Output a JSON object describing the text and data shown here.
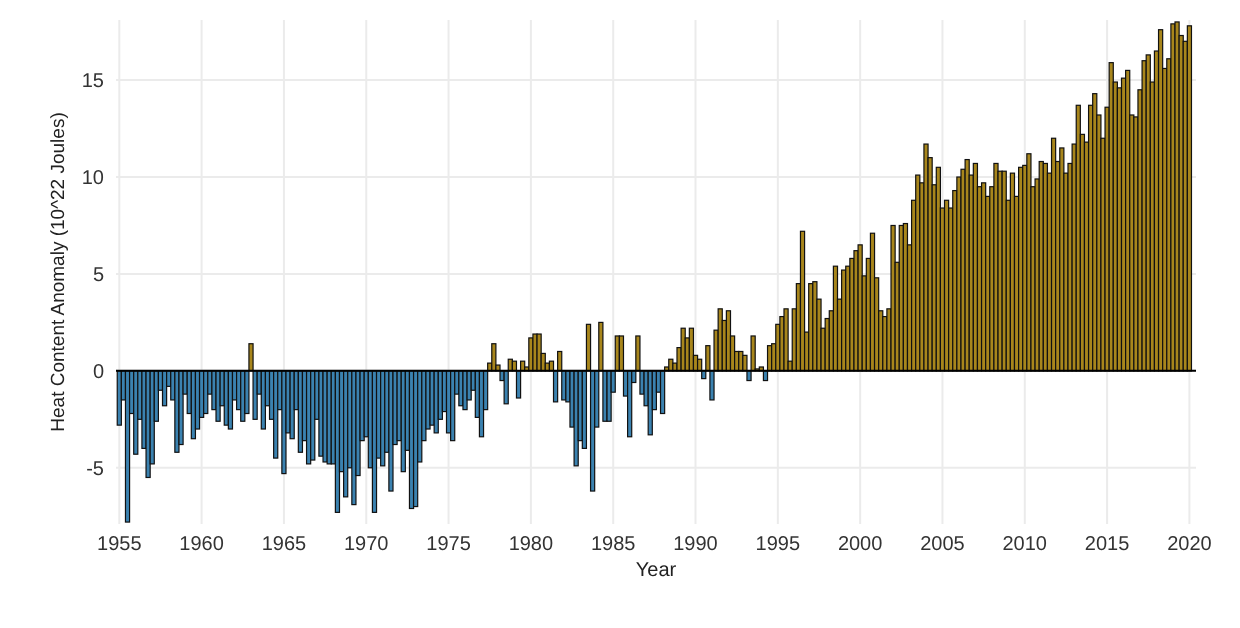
{
  "chart_data": {
    "type": "bar",
    "xlabel": "Year",
    "ylabel": "Heat Content Anomaly (10^22 Joules)",
    "xlim": [
      1954.8,
      2020.4
    ],
    "ylim": [
      -7.9,
      18.1
    ],
    "xticks": [
      1955,
      1960,
      1965,
      1970,
      1975,
      1980,
      1985,
      1990,
      1995,
      2000,
      2005,
      2010,
      2015,
      2020
    ],
    "yticks": [
      -5,
      0,
      5,
      10,
      15
    ],
    "grid": true,
    "ref_lines": [
      {
        "axis": "y",
        "value": 0,
        "color": "#000000"
      }
    ],
    "x": [
      1955,
      1955.25,
      1955.5,
      1955.75,
      1956,
      1956.25,
      1956.5,
      1956.75,
      1957,
      1957.25,
      1957.5,
      1957.75,
      1958,
      1958.25,
      1958.5,
      1958.75,
      1959,
      1959.25,
      1959.5,
      1959.75,
      1960,
      1960.25,
      1960.5,
      1960.75,
      1961,
      1961.25,
      1961.5,
      1961.75,
      1962,
      1962.25,
      1962.5,
      1962.75,
      1963,
      1963.25,
      1963.5,
      1963.75,
      1964,
      1964.25,
      1964.5,
      1964.75,
      1965,
      1965.25,
      1965.5,
      1965.75,
      1966,
      1966.25,
      1966.5,
      1966.75,
      1967,
      1967.25,
      1967.5,
      1967.75,
      1968,
      1968.25,
      1968.5,
      1968.75,
      1969,
      1969.25,
      1969.5,
      1969.75,
      1970,
      1970.25,
      1970.5,
      1970.75,
      1971,
      1971.25,
      1971.5,
      1971.75,
      1972,
      1972.25,
      1972.5,
      1972.75,
      1973,
      1973.25,
      1973.5,
      1973.75,
      1974,
      1974.25,
      1974.5,
      1974.75,
      1975,
      1975.25,
      1975.5,
      1975.75,
      1976,
      1976.25,
      1976.5,
      1976.75,
      1977,
      1977.25,
      1977.5,
      1977.75,
      1978,
      1978.25,
      1978.5,
      1978.75,
      1979,
      1979.25,
      1979.5,
      1979.75,
      1980,
      1980.25,
      1980.5,
      1980.75,
      1981,
      1981.25,
      1981.5,
      1981.75,
      1982,
      1982.25,
      1982.5,
      1982.75,
      1983,
      1983.25,
      1983.5,
      1983.75,
      1984,
      1984.25,
      1984.5,
      1984.75,
      1985,
      1985.25,
      1985.5,
      1985.75,
      1986,
      1986.25,
      1986.5,
      1986.75,
      1987,
      1987.25,
      1987.5,
      1987.75,
      1988,
      1988.25,
      1988.5,
      1988.75,
      1989,
      1989.25,
      1989.5,
      1989.75,
      1990,
      1990.25,
      1990.5,
      1990.75,
      1991,
      1991.25,
      1991.5,
      1991.75,
      1992,
      1992.25,
      1992.5,
      1992.75,
      1993,
      1993.25,
      1993.5,
      1993.75,
      1994,
      1994.25,
      1994.5,
      1994.75,
      1995,
      1995.25,
      1995.5,
      1995.75,
      1996,
      1996.25,
      1996.5,
      1996.75,
      1997,
      1997.25,
      1997.5,
      1997.75,
      1998,
      1998.25,
      1998.5,
      1998.75,
      1999,
      1999.25,
      1999.5,
      1999.75,
      2000,
      2000.25,
      2000.5,
      2000.75,
      2001,
      2001.25,
      2001.5,
      2001.75,
      2002,
      2002.25,
      2002.5,
      2002.75,
      2003,
      2003.25,
      2003.5,
      2003.75,
      2004,
      2004.25,
      2004.5,
      2004.75,
      2005,
      2005.25,
      2005.5,
      2005.75,
      2006,
      2006.25,
      2006.5,
      2006.75,
      2007,
      2007.25,
      2007.5,
      2007.75,
      2008,
      2008.25,
      2008.5,
      2008.75,
      2009,
      2009.25,
      2009.5,
      2009.75,
      2010,
      2010.25,
      2010.5,
      2010.75,
      2011,
      2011.25,
      2011.5,
      2011.75,
      2012,
      2012.25,
      2012.5,
      2012.75,
      2013,
      2013.25,
      2013.5,
      2013.75,
      2014,
      2014.25,
      2014.5,
      2014.75,
      2015,
      2015.25,
      2015.5,
      2015.75,
      2016,
      2016.25,
      2016.5,
      2016.75,
      2017,
      2017.25,
      2017.5,
      2017.75,
      2018,
      2018.25,
      2018.5,
      2018.75,
      2019,
      2019.25,
      2019.5,
      2019.75,
      2020
    ],
    "values": [
      -2.8,
      -1.5,
      -7.8,
      -2.2,
      -4.3,
      -2.5,
      -4.0,
      -5.5,
      -4.8,
      -2.6,
      -1.0,
      -1.8,
      -0.8,
      -1.5,
      -4.2,
      -3.8,
      -1.2,
      -2.2,
      -3.5,
      -3.0,
      -2.4,
      -2.2,
      -1.2,
      -2.0,
      -2.6,
      -1.8,
      -2.8,
      -3.0,
      -1.5,
      -2.0,
      -2.6,
      -2.2,
      1.4,
      -2.5,
      -1.2,
      -3.0,
      -1.8,
      -2.5,
      -4.5,
      -2.0,
      -5.3,
      -3.2,
      -3.5,
      -2.0,
      -4.2,
      -3.6,
      -4.8,
      -4.6,
      -2.5,
      -4.4,
      -4.7,
      -4.8,
      -4.8,
      -7.3,
      -5.2,
      -6.5,
      -5.0,
      -6.9,
      -5.4,
      -3.6,
      -3.4,
      -5.0,
      -7.3,
      -4.5,
      -4.9,
      -4.2,
      -6.2,
      -3.8,
      -3.6,
      -5.2,
      -4.1,
      -7.1,
      -7.0,
      -4.7,
      -3.6,
      -3.0,
      -2.8,
      -3.2,
      -2.5,
      -2.1,
      -3.2,
      -3.6,
      -1.2,
      -1.8,
      -2.0,
      -1.5,
      -1.0,
      -2.4,
      -3.4,
      -2.0,
      0.4,
      1.4,
      0.3,
      -0.5,
      -1.7,
      0.6,
      0.5,
      -1.4,
      0.5,
      0.2,
      1.7,
      1.9,
      1.9,
      0.9,
      0.4,
      0.5,
      -1.6,
      1.0,
      -1.5,
      -1.6,
      -2.9,
      -4.9,
      -3.6,
      -4.0,
      2.4,
      -6.2,
      -2.9,
      2.5,
      -2.6,
      -2.6,
      -1.1,
      1.8,
      1.8,
      -1.3,
      -3.4,
      -0.6,
      1.8,
      -1.2,
      -1.8,
      -3.3,
      -2.0,
      -1.1,
      -2.2,
      0.2,
      0.6,
      0.4,
      1.2,
      2.2,
      1.7,
      2.2,
      0.8,
      0.6,
      -0.4,
      1.3,
      -1.5,
      2.1,
      3.2,
      2.6,
      3.1,
      1.8,
      1.0,
      1.0,
      0.8,
      -0.5,
      1.8,
      0.1,
      0.2,
      -0.5,
      1.3,
      1.4,
      2.4,
      2.8,
      3.2,
      0.5,
      3.2,
      4.5,
      7.2,
      2.0,
      4.5,
      4.6,
      3.7,
      2.2,
      2.7,
      3.1,
      5.4,
      3.7,
      5.2,
      5.4,
      5.8,
      6.2,
      6.5,
      4.9,
      5.8,
      7.1,
      4.8,
      3.1,
      2.8,
      3.2,
      7.5,
      5.6,
      7.5,
      7.6,
      6.5,
      8.8,
      10.1,
      9.7,
      11.7,
      11.0,
      9.6,
      10.5,
      8.4,
      8.8,
      8.4,
      9.3,
      10.0,
      10.4,
      10.9,
      10.1,
      10.7,
      9.5,
      9.7,
      9.0,
      9.5,
      10.7,
      10.3,
      10.3,
      8.8,
      10.2,
      9.0,
      10.5,
      10.6,
      11.2,
      9.5,
      9.9,
      10.8,
      10.7,
      10.2,
      12.0,
      10.8,
      11.5,
      10.2,
      10.7,
      11.7,
      13.7,
      12.2,
      11.8,
      13.7,
      14.3,
      13.2,
      12.0,
      13.6,
      15.9,
      14.9,
      14.6,
      15.1,
      15.5,
      13.2,
      13.1,
      14.5,
      16.0,
      16.3,
      14.9,
      16.5,
      17.6,
      15.6,
      16.1,
      17.9,
      18.0,
      17.3,
      17.0,
      17.8
    ],
    "colors": [
      "#3b82b0",
      "#3b82b0",
      "#3b82b0",
      "#3b82b0",
      "#3b82b0",
      "#3b82b0",
      "#3b82b0",
      "#3b82b0",
      "#3b82b0",
      "#3b82b0",
      "#3b82b0",
      "#3b82b0",
      "#3b82b0",
      "#3b82b0",
      "#3b82b0",
      "#3b82b0",
      "#3b82b0",
      "#3b82b0",
      "#3b82b0",
      "#3b82b0",
      "#3b82b0",
      "#3b82b0",
      "#3b82b0",
      "#3b82b0",
      "#3b82b0",
      "#3b82b0",
      "#3b82b0",
      "#3b82b0",
      "#3b82b0",
      "#3b82b0",
      "#3b82b0",
      "#3b82b0",
      "#a8861c",
      "#3b82b0",
      "#3b82b0",
      "#3b82b0",
      "#3b82b0",
      "#3b82b0",
      "#3b82b0",
      "#3b82b0",
      "#3b82b0",
      "#3b82b0",
      "#3b82b0",
      "#3b82b0",
      "#3b82b0",
      "#3b82b0",
      "#3b82b0",
      "#3b82b0",
      "#3b82b0",
      "#3b82b0",
      "#3b82b0",
      "#3b82b0",
      "#3b82b0",
      "#3b82b0",
      "#3b82b0",
      "#3b82b0",
      "#3b82b0",
      "#3b82b0",
      "#3b82b0",
      "#3b82b0",
      "#3b82b0",
      "#3b82b0",
      "#3b82b0",
      "#3b82b0",
      "#3b82b0",
      "#3b82b0",
      "#3b82b0",
      "#3b82b0",
      "#3b82b0",
      "#3b82b0",
      "#3b82b0",
      "#3b82b0",
      "#3b82b0",
      "#3b82b0",
      "#3b82b0",
      "#3b82b0",
      "#3b82b0",
      "#3b82b0",
      "#3b82b0",
      "#3b82b0",
      "#3b82b0",
      "#3b82b0",
      "#3b82b0",
      "#3b82b0",
      "#3b82b0",
      "#3b82b0",
      "#3b82b0",
      "#3b82b0",
      "#3b82b0",
      "#3b82b0",
      "#a8861c",
      "#a8861c",
      "#a8861c",
      "#3b82b0",
      "#3b82b0",
      "#a8861c",
      "#a8861c",
      "#3b82b0",
      "#a8861c",
      "#a8861c",
      "#a8861c",
      "#a8861c",
      "#a8861c",
      "#a8861c",
      "#a8861c",
      "#a8861c",
      "#3b82b0",
      "#a8861c",
      "#3b82b0",
      "#3b82b0",
      "#3b82b0",
      "#3b82b0",
      "#3b82b0",
      "#3b82b0",
      "#a8861c",
      "#3b82b0",
      "#3b82b0",
      "#a8861c",
      "#3b82b0",
      "#3b82b0",
      "#3b82b0",
      "#a8861c",
      "#a8861c",
      "#3b82b0",
      "#3b82b0",
      "#3b82b0",
      "#a8861c",
      "#3b82b0",
      "#3b82b0",
      "#3b82b0",
      "#3b82b0",
      "#3b82b0",
      "#3b82b0",
      "#a8861c",
      "#a8861c",
      "#a8861c",
      "#a8861c",
      "#a8861c",
      "#a8861c",
      "#a8861c",
      "#a8861c",
      "#a8861c",
      "#3b82b0",
      "#a8861c",
      "#3b82b0",
      "#a8861c",
      "#a8861c",
      "#a8861c",
      "#a8861c",
      "#a8861c",
      "#a8861c",
      "#a8861c",
      "#a8861c",
      "#3b82b0",
      "#a8861c",
      "#a8861c",
      "#a8861c",
      "#3b82b0",
      "#a8861c",
      "#a8861c",
      "#a8861c",
      "#a8861c",
      "#a8861c",
      "#a8861c",
      "#a8861c",
      "#a8861c",
      "#a8861c",
      "#a8861c",
      "#a8861c",
      "#a8861c",
      "#a8861c",
      "#a8861c",
      "#a8861c",
      "#a8861c",
      "#a8861c",
      "#a8861c",
      "#a8861c",
      "#a8861c",
      "#a8861c",
      "#a8861c",
      "#a8861c",
      "#a8861c",
      "#a8861c",
      "#a8861c",
      "#a8861c",
      "#a8861c",
      "#a8861c",
      "#a8861c",
      "#a8861c",
      "#a8861c",
      "#a8861c",
      "#a8861c",
      "#a8861c",
      "#a8861c",
      "#a8861c",
      "#a8861c",
      "#a8861c",
      "#a8861c",
      "#a8861c",
      "#a8861c",
      "#a8861c",
      "#a8861c",
      "#a8861c",
      "#a8861c",
      "#a8861c",
      "#a8861c",
      "#a8861c",
      "#a8861c",
      "#a8861c",
      "#a8861c",
      "#a8861c",
      "#a8861c",
      "#a8861c",
      "#a8861c",
      "#a8861c",
      "#a8861c",
      "#a8861c",
      "#a8861c",
      "#a8861c",
      "#a8861c",
      "#a8861c",
      "#a8861c",
      "#a8861c",
      "#a8861c",
      "#a8861c",
      "#a8861c",
      "#a8861c",
      "#a8861c",
      "#a8861c",
      "#a8861c",
      "#a8861c",
      "#a8861c",
      "#a8861c",
      "#a8861c",
      "#a8861c",
      "#a8861c",
      "#a8861c",
      "#a8861c",
      "#a8861c",
      "#a8861c",
      "#a8861c",
      "#a8861c",
      "#a8861c",
      "#a8861c",
      "#a8861c",
      "#a8861c",
      "#a8861c",
      "#a8861c",
      "#a8861c",
      "#a8861c",
      "#a8861c",
      "#a8861c",
      "#a8861c",
      "#a8861c",
      "#a8861c",
      "#a8861c",
      "#a8861c",
      "#a8861c",
      "#a8861c",
      "#a8861c",
      "#a8861c"
    ]
  }
}
